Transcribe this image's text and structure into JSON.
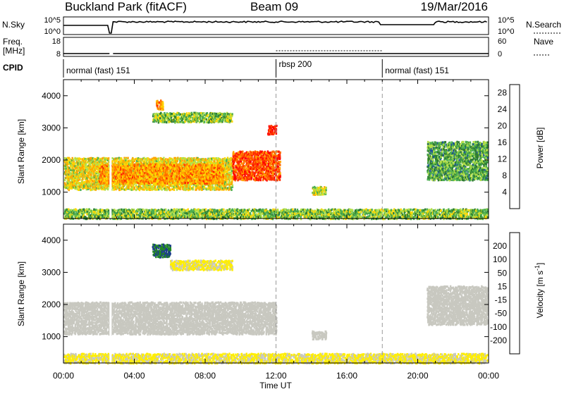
{
  "header": {
    "station": "Buckland Park (fitACF)",
    "beam": "Beam 09",
    "date": "19/Mar/2016"
  },
  "summary_panel": {
    "nsky_label": "N.Sky",
    "nsky_ticks": [
      "10^5",
      "10^0"
    ],
    "nsearch_label": "N.Search",
    "nsearch_ticks": [
      "10^5",
      "10^0"
    ],
    "freq_label": "Freq.",
    "freq_unit": "[MHz]",
    "freq_ticks": [
      "18",
      "8"
    ],
    "nave_label": "Nave",
    "nave_ticks": [
      "60",
      "0"
    ],
    "cpid_label": "CPID",
    "modes": [
      {
        "label": "normal (fast) 151",
        "start_hour": 0
      },
      {
        "label": "rbsp 200",
        "start_hour": 12
      },
      {
        "label": "normal (fast) 151",
        "start_hour": 18
      }
    ]
  },
  "colors": {
    "power_scale": [
      "#0000ff",
      "#1e50a0",
      "#2e7d32",
      "#4caf50",
      "#b2df48",
      "#ffd700",
      "#ffa500",
      "#ff6a00",
      "#ff2a00",
      "#ff0000"
    ],
    "velocity_scale": [
      "#ff0000",
      "#ff6600",
      "#ffaa00",
      "#ffee00",
      "#c8c8c0",
      "#c8c8c0",
      "#66bb44",
      "#228822",
      "#1c3d8c",
      "#0000dd"
    ],
    "ground_scatter_band": "#c8c8c0"
  },
  "chart_data": [
    {
      "type": "heatmap",
      "name": "power",
      "x_ticks": [
        "00:00",
        "04:00",
        "08:00",
        "12:00",
        "16:00",
        "20:00",
        "00:00"
      ],
      "xlim": [
        0,
        24
      ],
      "ylabel": "Slant Range [km]",
      "y_ticks": [
        1000,
        2000,
        3000,
        4000
      ],
      "ylim": [
        180,
        4500
      ],
      "colorbar": {
        "label": "Power [dB]",
        "ticks": [
          4,
          8,
          12,
          16,
          20,
          24,
          28
        ],
        "range": [
          0,
          30
        ]
      },
      "features": [
        {
          "t0": 0.0,
          "t1": 9.5,
          "r0": 1100,
          "r1": 2100,
          "level": 16
        },
        {
          "t0": 2.0,
          "t1": 9.0,
          "r0": 1300,
          "r1": 1900,
          "level": 20
        },
        {
          "t0": 9.5,
          "t1": 12.2,
          "r0": 1400,
          "r1": 2300,
          "level": 24
        },
        {
          "t0": 11.5,
          "t1": 12.0,
          "r0": 2800,
          "r1": 3100,
          "level": 26
        },
        {
          "t0": 5.0,
          "t1": 9.5,
          "r0": 3200,
          "r1": 3500,
          "level": 12
        },
        {
          "t0": 5.2,
          "t1": 5.6,
          "r0": 3600,
          "r1": 3900,
          "level": 20
        },
        {
          "t0": 0.0,
          "t1": 24.0,
          "r0": 200,
          "r1": 500,
          "level": 12
        },
        {
          "t0": 20.5,
          "t1": 24.0,
          "r0": 1400,
          "r1": 2600,
          "level": 10
        },
        {
          "t0": 14.0,
          "t1": 14.8,
          "r0": 950,
          "r1": 1200,
          "level": 14
        }
      ]
    },
    {
      "type": "heatmap",
      "name": "velocity",
      "x_ticks": [
        "00:00",
        "04:00",
        "08:00",
        "12:00",
        "16:00",
        "20:00",
        "00:00"
      ],
      "xlabel": "Time UT",
      "xlim": [
        0,
        24
      ],
      "ylabel": "Slant Range [km]",
      "y_ticks": [
        1000,
        2000,
        3000,
        4000
      ],
      "ylim": [
        180,
        4500
      ],
      "colorbar": {
        "label": "Velocity [m s^-1]",
        "ticks": [
          200,
          100,
          50,
          15,
          -15,
          -50,
          -100,
          -200
        ],
        "range": [
          -250,
          250
        ]
      },
      "features": [
        {
          "t0": 0.0,
          "t1": 12.0,
          "r0": 1100,
          "r1": 2100,
          "level": 0
        },
        {
          "t0": 5.0,
          "t1": 6.0,
          "r0": 3500,
          "r1": 3900,
          "level": 150
        },
        {
          "t0": 6.0,
          "t1": 9.5,
          "r0": 3100,
          "r1": 3400,
          "level": -60
        },
        {
          "t0": 0.0,
          "t1": 24.0,
          "r0": 200,
          "r1": 500,
          "level": -60
        },
        {
          "t0": 20.5,
          "t1": 24.0,
          "r0": 1400,
          "r1": 2600,
          "level": 0
        },
        {
          "t0": 14.0,
          "t1": 14.8,
          "r0": 950,
          "r1": 1200,
          "level": 0
        }
      ]
    }
  ]
}
